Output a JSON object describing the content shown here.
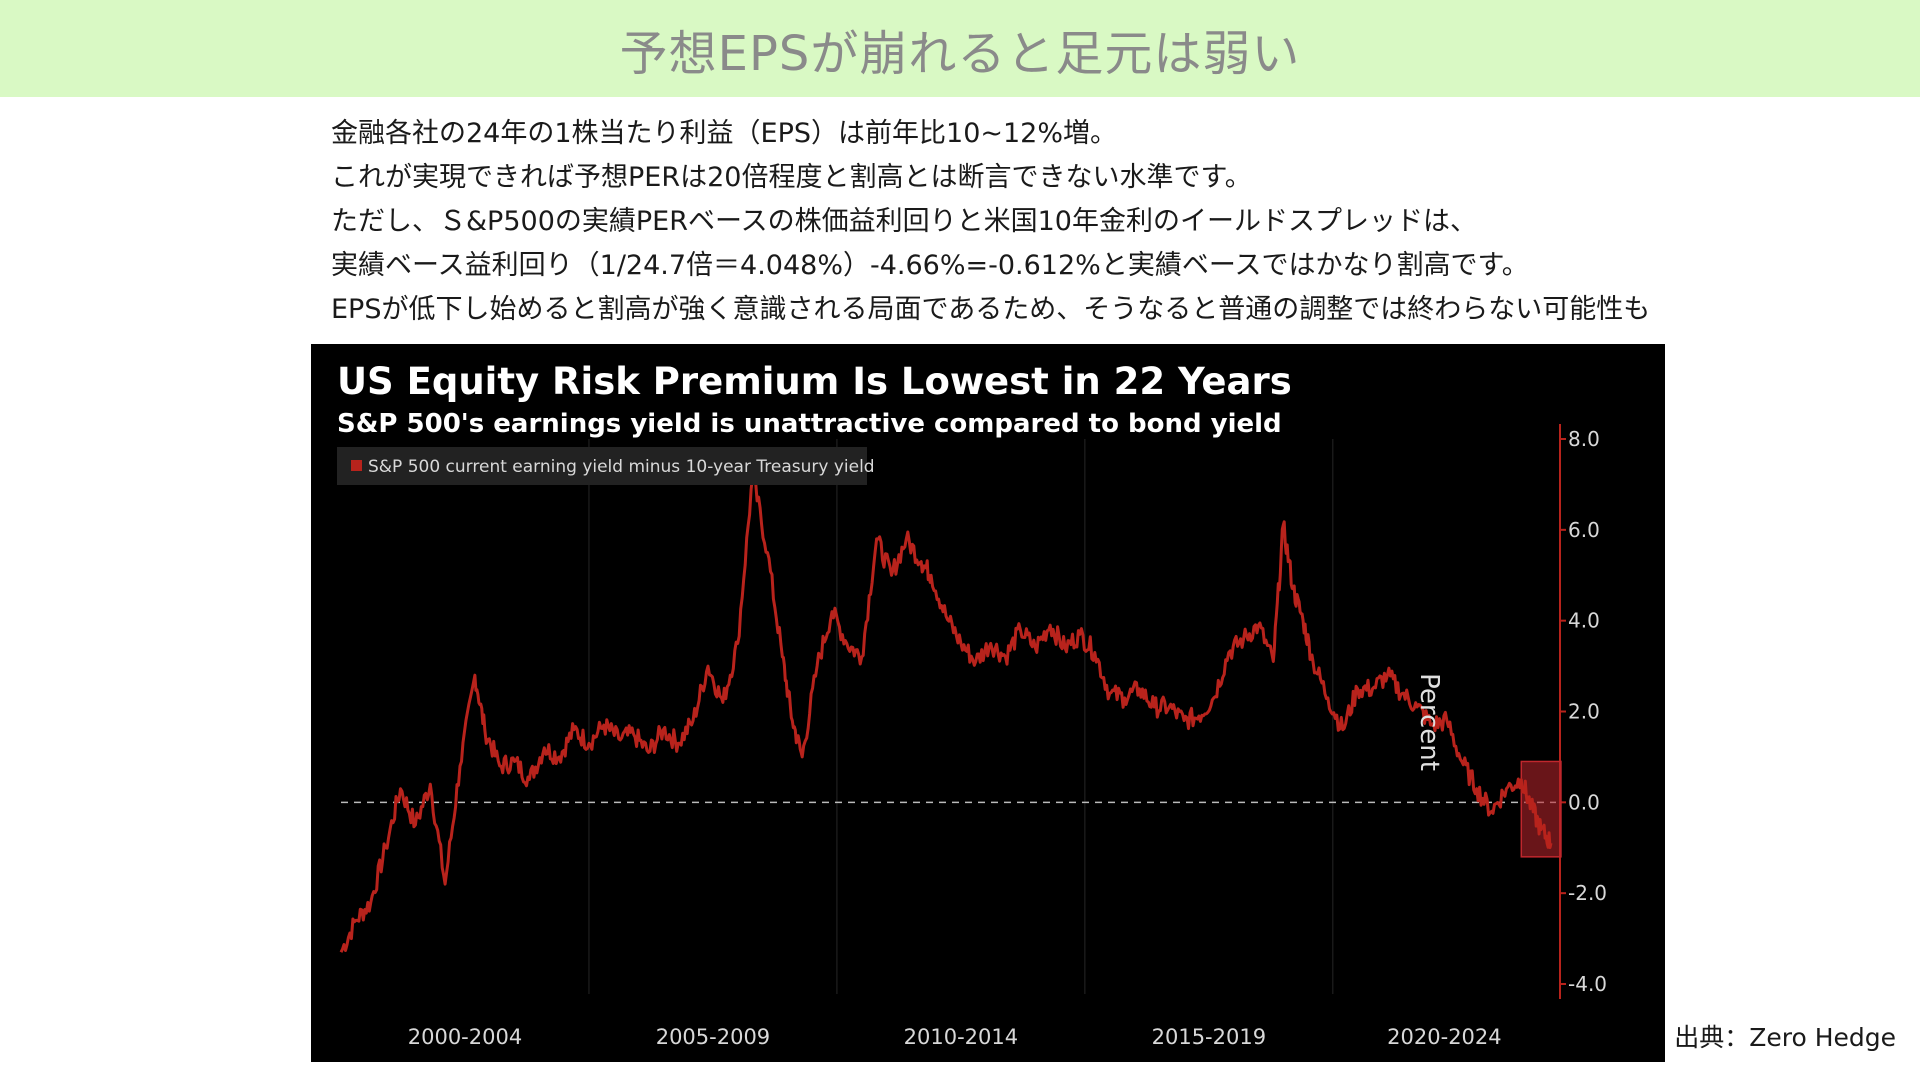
{
  "header": {
    "title": "予想EPSが崩れると足元は弱い"
  },
  "body": {
    "lines": [
      "金融各社の24年の1株当たり利益（EPS）は前年比10~12%増。",
      "これが実現できれば予想PERは20倍程度と割高とは断言できない水準です。",
      "ただし、Ｓ&P500の実績PERベースの株価益利回りと米国10年金利のイールドスプレッドは、",
      "実績ベース益利回り（1/24.7倍＝4.048%）-4.66%=-0.612%と実績ベースではかなり割高です。",
      "EPSが低下し始めると割高が強く意識される局面であるため、そうなると普通の調整では終わらない可能性も"
    ]
  },
  "source": "出典：Zero Hedge",
  "colors": {
    "header_bg": "#d9f9c4",
    "title_text": "#8a8a8a",
    "chart_bg": "#000000",
    "series": "#b8231c",
    "axis": "#b8231c",
    "highlight": "#c0272d"
  },
  "chart_data": {
    "type": "line",
    "title": "US Equity Risk Premium Is Lowest in 22 Years",
    "subtitle": "S&P 500's earnings yield is unattractive compared to bond yield",
    "ylabel": "Percent",
    "xlabel": "",
    "ylim": [
      -4.0,
      8.0
    ],
    "xlim": [
      2000.0,
      2024.5
    ],
    "y_ticks": [
      "-4.0",
      "-2.0",
      "0.0",
      "2.0",
      "4.0",
      "6.0",
      "8.0"
    ],
    "x_tick_labels": [
      "2000-2004",
      "2005-2009",
      "2010-2014",
      "2015-2019",
      "2020-2024"
    ],
    "legend_position": "top-left",
    "zero_line": "dashed",
    "grid": true,
    "highlight_range": {
      "x": [
        2023.8,
        2024.6
      ],
      "y": [
        -1.2,
        0.9
      ]
    },
    "series": [
      {
        "name": "S&P 500 current earning yield minus 10-year Treasury yield",
        "x": [
          2000.0,
          2000.3,
          2000.6,
          2000.9,
          2001.2,
          2001.5,
          2001.8,
          2002.1,
          2002.4,
          2002.7,
          2002.9,
          2003.2,
          2003.5,
          2003.8,
          2004.1,
          2004.4,
          2004.7,
          2005.0,
          2005.3,
          2005.6,
          2005.9,
          2006.2,
          2006.5,
          2006.8,
          2007.1,
          2007.4,
          2007.7,
          2008.0,
          2008.3,
          2008.6,
          2008.9,
          2009.1,
          2009.3,
          2009.6,
          2009.9,
          2010.2,
          2010.5,
          2010.8,
          2011.1,
          2011.4,
          2011.7,
          2011.9,
          2012.2,
          2012.5,
          2012.8,
          2013.1,
          2013.4,
          2013.7,
          2014.0,
          2014.3,
          2014.6,
          2014.9,
          2015.2,
          2015.5,
          2015.8,
          2016.1,
          2016.4,
          2016.7,
          2017.0,
          2017.3,
          2017.6,
          2017.9,
          2018.2,
          2018.5,
          2018.8,
          2019.0,
          2019.2,
          2019.4,
          2019.6,
          2019.9,
          2020.2,
          2020.5,
          2020.8,
          2021.1,
          2021.4,
          2021.7,
          2022.0,
          2022.3,
          2022.6,
          2022.9,
          2023.2,
          2023.5,
          2023.8,
          2024.0,
          2024.2,
          2024.4
        ],
        "values": [
          -3.3,
          -2.6,
          -2.2,
          -1.0,
          0.3,
          -0.5,
          0.4,
          -1.8,
          0.8,
          2.8,
          1.6,
          0.8,
          0.9,
          0.5,
          1.2,
          1.0,
          1.6,
          1.3,
          1.7,
          1.4,
          1.5,
          1.1,
          1.6,
          1.3,
          1.8,
          3.0,
          2.2,
          3.5,
          7.2,
          5.5,
          3.2,
          1.8,
          1.0,
          3.0,
          4.2,
          3.5,
          3.2,
          5.8,
          5.0,
          5.8,
          5.3,
          5.0,
          4.1,
          3.5,
          3.1,
          3.5,
          3.2,
          3.8,
          3.4,
          3.9,
          3.4,
          3.7,
          3.3,
          2.4,
          2.3,
          2.5,
          2.1,
          2.1,
          1.8,
          1.9,
          2.3,
          3.3,
          3.6,
          3.9,
          3.1,
          6.1,
          4.7,
          4.0,
          3.1,
          2.3,
          1.6,
          2.5,
          2.5,
          2.8,
          2.4,
          2.1,
          1.7,
          1.8,
          0.9,
          0.3,
          -0.2,
          0.3,
          0.5,
          -0.1,
          -0.6,
          -0.9
        ]
      }
    ]
  }
}
